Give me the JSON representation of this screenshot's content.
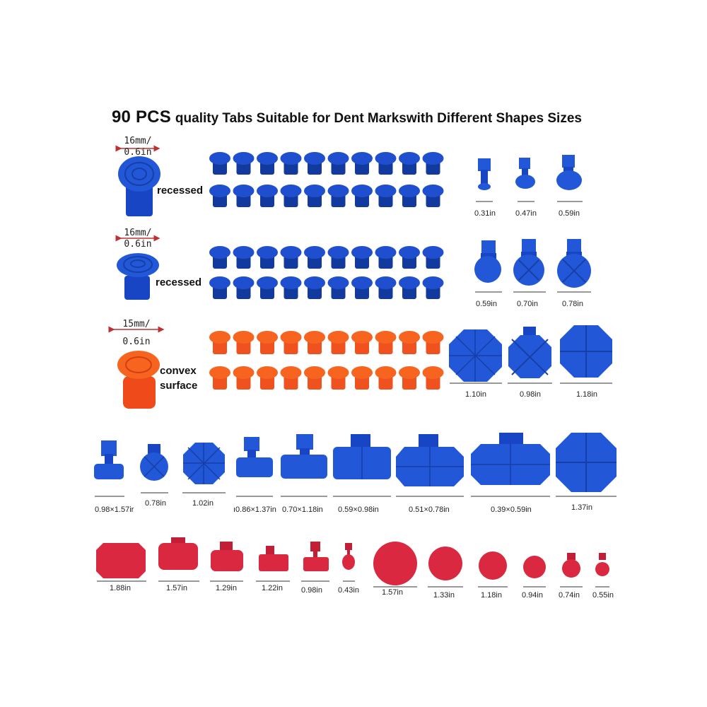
{
  "title": {
    "count": "90 PCS",
    "text": "quality Tabs Suitable for Dent Markswith Different Shapes Sizes"
  },
  "colors": {
    "blue": "#1f4fcf",
    "blue_dark": "#123a9e",
    "orange": "#f0521f",
    "red": "#d9283f"
  },
  "rows": [
    {
      "dim_top": "16mm/",
      "dim_bottom": "0.6in",
      "label": "recessed",
      "color": "blue"
    },
    {
      "dim_top": "16mm/",
      "dim_bottom": "0.6in",
      "label": "recessed",
      "color": "blue"
    },
    {
      "dim_top": "15mm/",
      "dim_bottom": "0.6in",
      "label_line1": "convex",
      "label_line2": "surface",
      "color": "orange"
    }
  ],
  "right_sizes": {
    "row1": [
      "0.31in",
      "0.47in",
      "0.59in"
    ],
    "row2": [
      "0.59in",
      "0.70in",
      "0.78in"
    ],
    "row3": [
      "1.10in",
      "0.98in",
      "1.18in"
    ]
  },
  "blue_tabs": [
    "0.98×1.57ir",
    "0.78in",
    "1.02in",
    "ı0.86×1.37in",
    "0.70×1.18in",
    "0.59×0.98in",
    "0.51×0.78in",
    "0.39×0.59in",
    "1.37in"
  ],
  "red_tabs": [
    "1.88in",
    "1.57in",
    "1.29in",
    "1.22in",
    "0.98in",
    "0.43in",
    "1.57in",
    "1.33in",
    "1.18in",
    "0.94in",
    "0.74in",
    "0.55in"
  ]
}
